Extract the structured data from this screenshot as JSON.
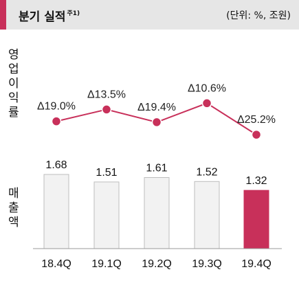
{
  "header": {
    "title": "분기 실적",
    "footnote": "주1)",
    "unit": "(단위: %, 조원)"
  },
  "labels": {
    "margin": [
      "영",
      "업",
      "이",
      "익",
      "률"
    ],
    "sales": [
      "매",
      "출",
      "액"
    ]
  },
  "colors": {
    "accent": "#c8305a",
    "bar_default": "#f2f2f2",
    "bar_border": "#bdbdbd",
    "bar_highlight": "#c8305a",
    "line": "#c8305a"
  },
  "chart_data": {
    "type": "bar",
    "categories": [
      "18.4Q",
      "19.1Q",
      "19.2Q",
      "19.3Q",
      "19.4Q"
    ],
    "series": [
      {
        "values": [
          1.68,
          1.51,
          1.61,
          1.52,
          1.32
        ]
      }
    ],
    "value_labels": [
      "1.68",
      "1.51",
      "1.61",
      "1.52",
      "1.32"
    ],
    "highlight_index": 4,
    "line_series": {
      "values": [
        19.0,
        13.5,
        19.4,
        10.6,
        25.2
      ],
      "labels": [
        "Δ19.0%",
        "Δ13.5%",
        "Δ19.4%",
        "Δ10.6%",
        "Δ25.2%"
      ]
    },
    "ylim": [
      0,
      1.8
    ],
    "grid": false,
    "legend": "none"
  }
}
